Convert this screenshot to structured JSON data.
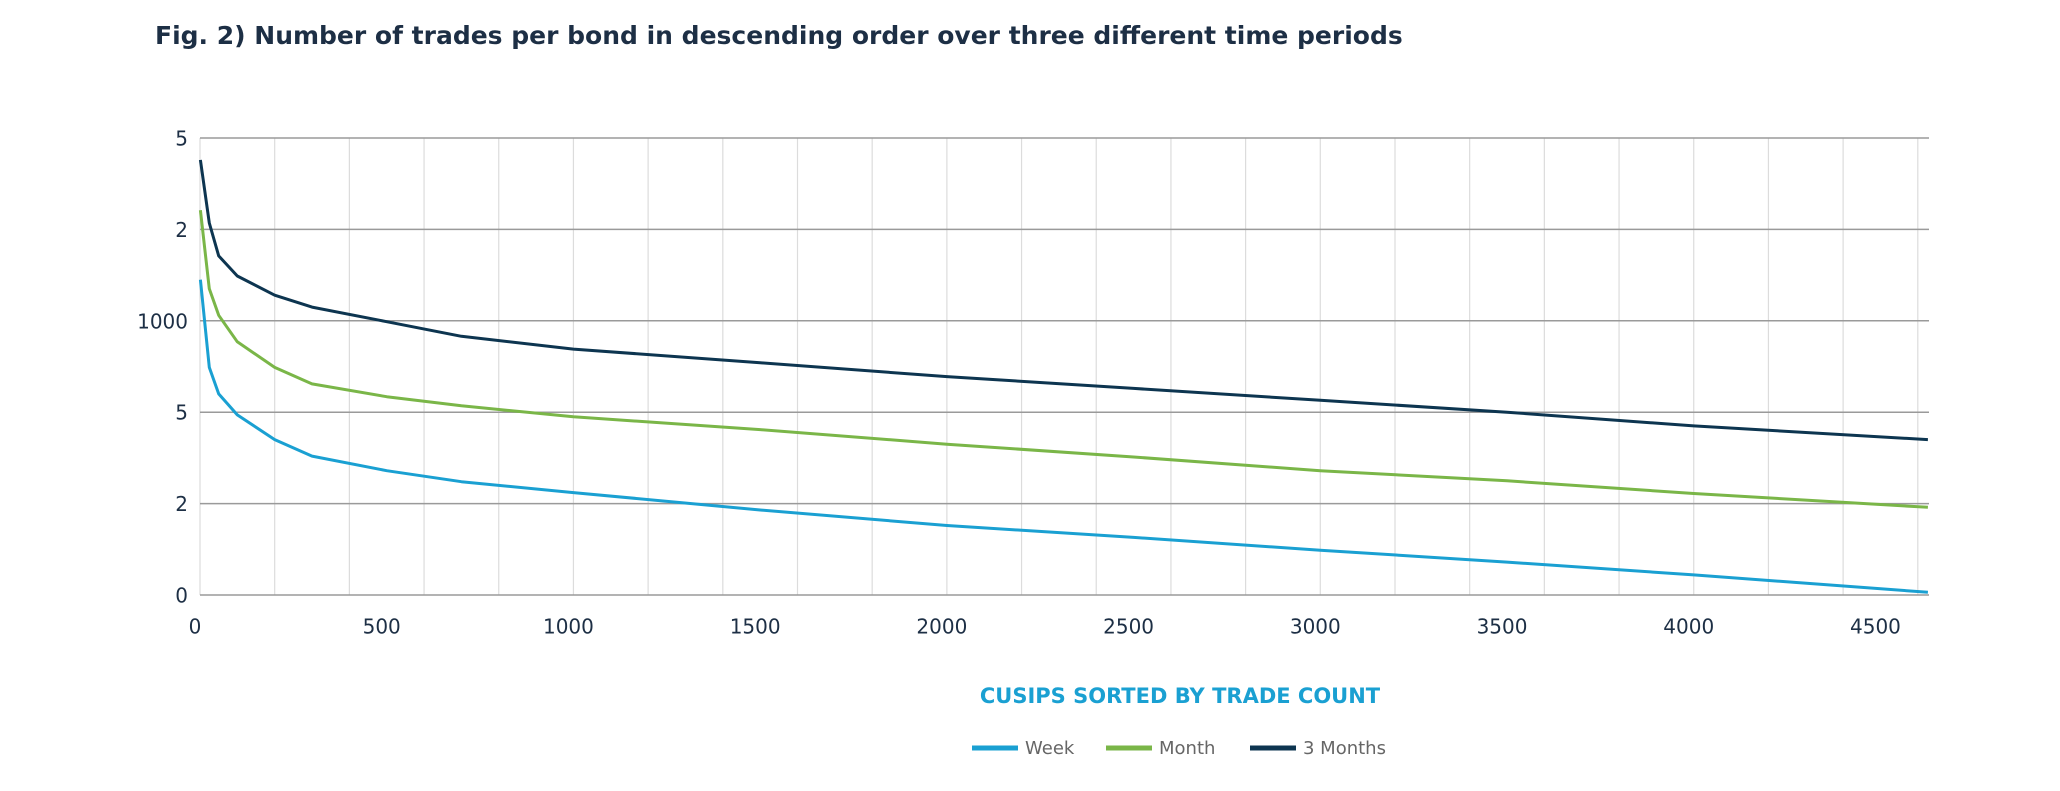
{
  "chart_data": {
    "type": "line",
    "title": "Fig. 2) Number of trades per bond in descending order over three different time periods",
    "x_label": "CUSIPS SORTED BY TRADE COUNT",
    "x": [
      1,
      25,
      50,
      100,
      200,
      300,
      500,
      700,
      1000,
      1500,
      2000,
      2500,
      3000,
      3500,
      4000,
      4627
    ],
    "series": [
      {
        "name": "Week",
        "color": "#1aa0d2",
        "values": [
          3.45,
          2.49,
          2.2,
          1.97,
          1.7,
          1.52,
          1.36,
          1.24,
          1.12,
          0.93,
          0.76,
          0.63,
          0.49,
          0.36,
          0.22,
          0.03
        ]
      },
      {
        "name": "Month",
        "color": "#7ab648",
        "values": [
          4.21,
          3.35,
          3.06,
          2.77,
          2.49,
          2.31,
          2.17,
          2.07,
          1.95,
          1.81,
          1.65,
          1.51,
          1.36,
          1.25,
          1.11,
          0.96
        ]
      },
      {
        "name": "3 Months",
        "color": "#0d3550",
        "values": [
          4.76,
          4.07,
          3.71,
          3.49,
          3.28,
          3.15,
          2.99,
          2.83,
          2.69,
          2.54,
          2.39,
          2.26,
          2.13,
          2.0,
          1.85,
          1.7
        ]
      }
    ],
    "xlim": [
      0,
      4630
    ],
    "xticks": [
      0,
      500,
      1000,
      1500,
      2000,
      2500,
      3000,
      3500,
      4000,
      4500
    ],
    "xgridlines": [
      0,
      200,
      400,
      600,
      800,
      1000,
      1200,
      1400,
      1600,
      1800,
      2000,
      2200,
      2400,
      2600,
      2800,
      3000,
      3200,
      3400,
      3600,
      3800,
      4000,
      4200,
      4400,
      4600
    ],
    "ylim": [
      0,
      5
    ],
    "yticks": [
      0,
      {
        "value": 1,
        "label": "2"
      },
      {
        "value": 2,
        "label": "5"
      },
      {
        "value": 3,
        "label": "1000"
      },
      {
        "value": 4,
        "label": "2"
      },
      5
    ],
    "grid": true
  }
}
